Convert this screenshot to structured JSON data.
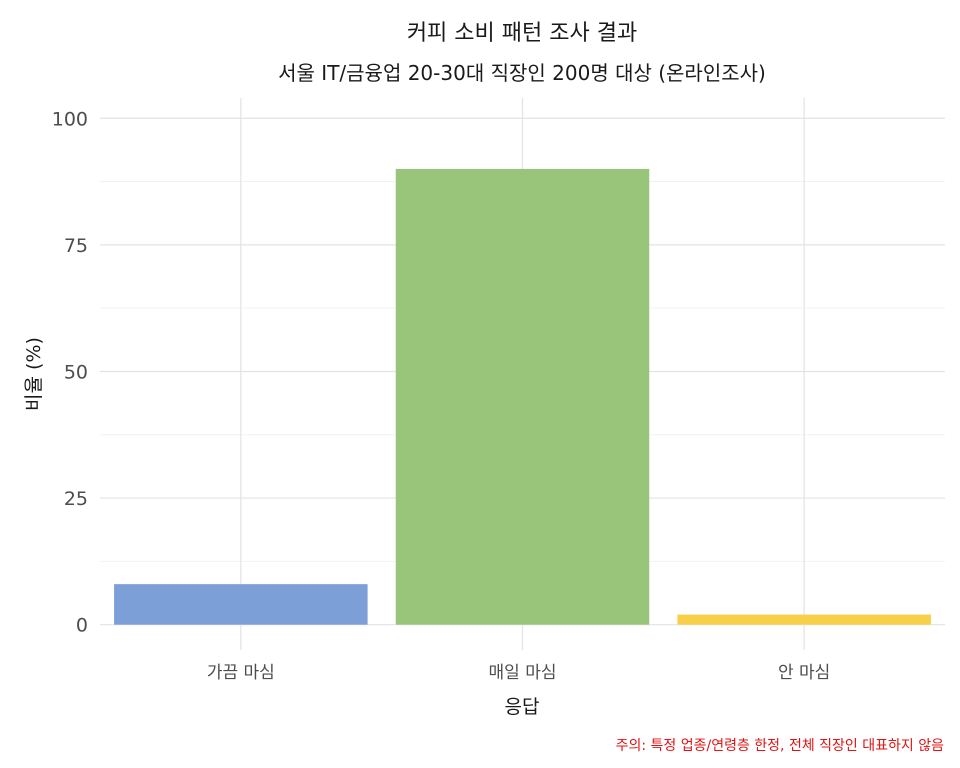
{
  "chart_data": {
    "type": "bar",
    "title": "커피 소비 패턴 조사 결과",
    "subtitle": "서울 IT/금융업 20-30대 직장인 200명 대상 (온라인조사)",
    "xlabel": "응답",
    "ylabel": "비율 (%)",
    "categories": [
      "가끔 마심",
      "매일 마심",
      "안 마심"
    ],
    "values": [
      8,
      90,
      2
    ],
    "colors": [
      "#7b9fd6",
      "#98c57a",
      "#f8cf49"
    ],
    "ylim": [
      -5,
      104
    ],
    "yticks": [
      0,
      25,
      50,
      75,
      100
    ],
    "grid": true,
    "legend": "none",
    "caption": "주의: 특정 업종/연령층 한정, 전체 직장인 대표하지 않음",
    "caption_color": "#e01414"
  }
}
